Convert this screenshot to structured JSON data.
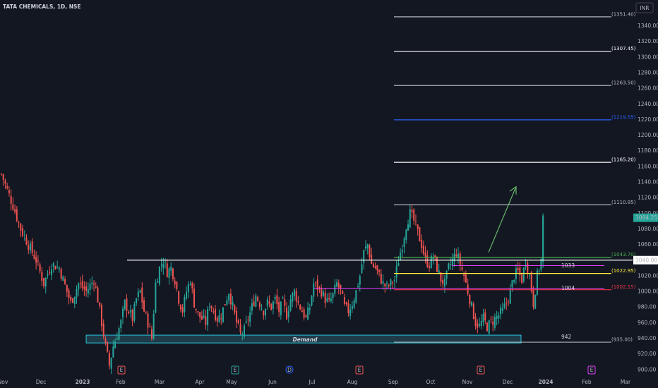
{
  "symbol_header": "TATA CHEMICALS, 1D, NSE",
  "currency_button": "INR",
  "colors": {
    "background": "#131722",
    "up": "#26a69a",
    "down": "#ef5350",
    "axis_text": "#b2b5be",
    "zone_fill": "#2a5a6a",
    "zone_border": "#26c6da",
    "fib_green": "#4caf50",
    "fib_blue": "#2962ff",
    "fib_red": "#f23645",
    "fib_yellow": "#ffeb3b",
    "magenta": "#e040fb",
    "arrow": "#66bb6a"
  },
  "chart_data": {
    "type": "candlestick",
    "title": "TATA CHEMICALS, 1D, NSE",
    "ylim": [
      895,
      1370
    ],
    "y_ticks": [
      "1340.00",
      "1320.00",
      "1300.00",
      "1280.00",
      "1260.00",
      "1240.00",
      "1220.00",
      "1200.00",
      "1180.00",
      "1160.00",
      "1140.00",
      "1120.00",
      "1100.00",
      "1080.00",
      "1060.00",
      "1040.00",
      "1020.00",
      "1000.00",
      "980.00",
      "960.00",
      "940.00",
      "920.00",
      "900.00"
    ],
    "x_ticks": [
      "Nov",
      "Dec",
      "2023",
      "Feb",
      "Mar",
      "Apr",
      "May",
      "Jun",
      "Jul",
      "Aug",
      "Sep",
      "Oct",
      "Nov",
      "Dec",
      "2024",
      "Feb",
      "Mar"
    ],
    "last_price": "1094.25",
    "marked_price": "1040.00",
    "resistance_price": 1040,
    "demand_zone": {
      "label": "Demand",
      "from": 934,
      "to": 944
    },
    "fib_levels": [
      {
        "label": "(1351.40)",
        "value": 1351.4,
        "color": "#b2b5be"
      },
      {
        "label": "(1307.45)",
        "value": 1307.45,
        "color": "#ffffff"
      },
      {
        "label": "(1263.50)",
        "value": 1263.5,
        "color": "#b2b5be"
      },
      {
        "label": "(1219.55)",
        "value": 1219.55,
        "color": "#2962ff"
      },
      {
        "label": "(1165.20)",
        "value": 1165.2,
        "color": "#ffffff"
      },
      {
        "label": "(1110.85)",
        "value": 1110.85,
        "color": "#b2b5be"
      },
      {
        "label": "(1043.70)",
        "value": 1043.7,
        "color": "#4caf50"
      },
      {
        "label": "(1022.95)",
        "value": 1022.95,
        "color": "#ffeb3b"
      },
      {
        "label": "(1002.15)",
        "value": 1002.15,
        "color": "#f23645"
      },
      {
        "label": "(935.00)",
        "value": 935.0,
        "color": "#b2b5be"
      }
    ],
    "annotations": [
      {
        "text": "1033",
        "value": 1033
      },
      {
        "text": "1004",
        "value": 1004
      },
      {
        "text": "942",
        "value": 942
      }
    ],
    "event_markers": [
      {
        "label": "E",
        "kind": "earnings",
        "color": "#ef5350"
      },
      {
        "label": "E",
        "kind": "earnings",
        "color": "#26a69a"
      },
      {
        "label": "D",
        "kind": "dividend",
        "color": "#2962ff"
      },
      {
        "label": "E",
        "kind": "earnings",
        "color": "#ef5350"
      },
      {
        "label": "E",
        "kind": "earnings",
        "color": "#ef5350"
      },
      {
        "label": "E",
        "kind": "earnings",
        "color": "#e040fb"
      }
    ],
    "close_path": [
      [
        0,
        1150
      ],
      [
        6,
        1110
      ],
      [
        10,
        1080
      ],
      [
        14,
        1060
      ],
      [
        18,
        1040
      ],
      [
        22,
        1010
      ],
      [
        26,
        1035
      ],
      [
        30,
        1030
      ],
      [
        34,
        1000
      ],
      [
        36,
        985
      ],
      [
        40,
        1010
      ],
      [
        44,
        1000
      ],
      [
        48,
        1015
      ],
      [
        50,
        990
      ],
      [
        52,
        960
      ],
      [
        54,
        930
      ],
      [
        56,
        905
      ],
      [
        58,
        930
      ],
      [
        60,
        945
      ],
      [
        62,
        960
      ],
      [
        64,
        985
      ],
      [
        66,
        975
      ],
      [
        68,
        965
      ],
      [
        70,
        990
      ],
      [
        72,
        1000
      ],
      [
        74,
        975
      ],
      [
        76,
        960
      ],
      [
        78,
        940
      ],
      [
        80,
        1010
      ],
      [
        82,
        1030
      ],
      [
        84,
        1040
      ],
      [
        86,
        1025
      ],
      [
        88,
        1030
      ],
      [
        90,
        1015
      ],
      [
        92,
        990
      ],
      [
        94,
        975
      ],
      [
        96,
        1000
      ],
      [
        98,
        1015
      ],
      [
        100,
        985
      ],
      [
        102,
        970
      ],
      [
        104,
        965
      ],
      [
        106,
        960
      ],
      [
        108,
        985
      ],
      [
        110,
        975
      ],
      [
        112,
        965
      ],
      [
        114,
        970
      ],
      [
        116,
        985
      ],
      [
        118,
        1000
      ],
      [
        120,
        980
      ],
      [
        122,
        960
      ],
      [
        124,
        945
      ],
      [
        126,
        950
      ],
      [
        128,
        965
      ],
      [
        130,
        980
      ],
      [
        132,
        995
      ],
      [
        134,
        985
      ],
      [
        136,
        975
      ],
      [
        138,
        985
      ],
      [
        140,
        980
      ],
      [
        142,
        990
      ],
      [
        144,
        975
      ],
      [
        146,
        985
      ],
      [
        148,
        970
      ],
      [
        150,
        990
      ],
      [
        152,
        1000
      ],
      [
        154,
        985
      ],
      [
        156,
        975
      ],
      [
        158,
        965
      ],
      [
        160,
        980
      ],
      [
        162,
        1010
      ],
      [
        164,
        1005
      ],
      [
        166,
        1000
      ],
      [
        168,
        990
      ],
      [
        170,
        985
      ],
      [
        172,
        995
      ],
      [
        174,
        1010
      ],
      [
        176,
        1000
      ],
      [
        178,
        980
      ],
      [
        180,
        975
      ],
      [
        182,
        985
      ],
      [
        184,
        1000
      ],
      [
        186,
        1020
      ],
      [
        188,
        1050
      ],
      [
        190,
        1060
      ],
      [
        192,
        1035
      ],
      [
        194,
        1030
      ],
      [
        196,
        1020
      ],
      [
        198,
        1010
      ],
      [
        200,
        1005
      ],
      [
        202,
        1010
      ],
      [
        204,
        1015
      ],
      [
        206,
        1040
      ],
      [
        208,
        1060
      ],
      [
        210,
        1085
      ],
      [
        212,
        1100
      ],
      [
        214,
        1090
      ],
      [
        216,
        1075
      ],
      [
        218,
        1060
      ],
      [
        220,
        1040
      ],
      [
        222,
        1035
      ],
      [
        224,
        1045
      ],
      [
        226,
        1030
      ],
      [
        228,
        1015
      ],
      [
        230,
        1010
      ],
      [
        232,
        1030
      ],
      [
        234,
        1040
      ],
      [
        236,
        1050
      ],
      [
        238,
        1035
      ],
      [
        240,
        1020
      ],
      [
        242,
        1000
      ],
      [
        244,
        980
      ],
      [
        246,
        960
      ],
      [
        248,
        955
      ],
      [
        250,
        965
      ],
      [
        252,
        955
      ],
      [
        254,
        960
      ],
      [
        256,
        965
      ],
      [
        258,
        970
      ],
      [
        260,
        975
      ],
      [
        262,
        985
      ],
      [
        264,
        1000
      ],
      [
        266,
        1020
      ],
      [
        268,
        1025
      ],
      [
        270,
        1015
      ],
      [
        272,
        1040
      ],
      [
        274,
        1020
      ],
      [
        276,
        985
      ],
      [
        278,
        1020
      ],
      [
        280,
        1040
      ],
      [
        281,
        1094
      ]
    ]
  }
}
